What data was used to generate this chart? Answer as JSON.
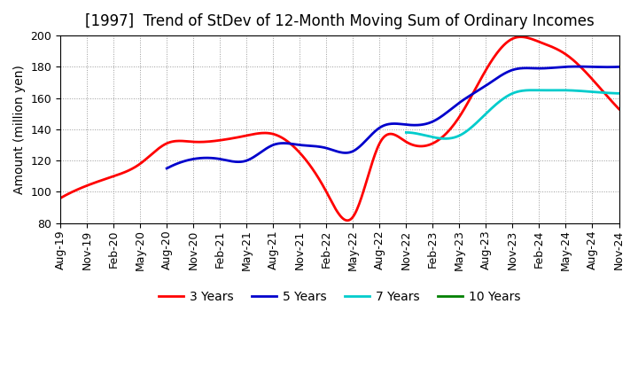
{
  "title": "[1997]  Trend of StDev of 12-Month Moving Sum of Ordinary Incomes",
  "ylabel": "Amount (million yen)",
  "ylim": [
    80,
    200
  ],
  "yticks": [
    80,
    100,
    120,
    140,
    160,
    180,
    200
  ],
  "x_labels": [
    "Aug-19",
    "Nov-19",
    "Feb-20",
    "May-20",
    "Aug-20",
    "Nov-20",
    "Feb-21",
    "May-21",
    "Aug-21",
    "Nov-21",
    "Feb-22",
    "May-22",
    "Aug-22",
    "Nov-22",
    "Feb-23",
    "May-23",
    "Aug-23",
    "Nov-23",
    "Feb-24",
    "May-24",
    "Aug-24",
    "Nov-24"
  ],
  "series": {
    "3 Years": {
      "color": "#ff0000",
      "data": [
        96,
        104,
        110,
        118,
        131,
        132,
        133,
        136,
        137,
        125,
        100,
        84,
        131,
        132,
        131,
        148,
        178,
        198,
        196,
        188,
        172,
        153
      ]
    },
    "5 Years": {
      "color": "#0000cc",
      "data": [
        null,
        null,
        null,
        null,
        115,
        121,
        121,
        120,
        130,
        130,
        128,
        126,
        141,
        143,
        145,
        157,
        168,
        178,
        179,
        180,
        180,
        180
      ]
    },
    "7 Years": {
      "color": "#00cccc",
      "data": [
        null,
        null,
        null,
        null,
        null,
        null,
        null,
        null,
        null,
        null,
        null,
        null,
        null,
        138,
        135,
        136,
        150,
        163,
        165,
        165,
        164,
        163
      ]
    },
    "10 Years": {
      "color": "#008000",
      "data": [
        null,
        null,
        null,
        null,
        null,
        null,
        null,
        null,
        null,
        null,
        null,
        null,
        null,
        null,
        null,
        null,
        null,
        null,
        null,
        null,
        null,
        null
      ]
    }
  },
  "background_color": "#ffffff",
  "plot_bg_color": "#ffffff",
  "grid_color": "#999999",
  "title_fontsize": 12,
  "label_fontsize": 10,
  "tick_fontsize": 9,
  "legend_labels": [
    "3 Years",
    "5 Years",
    "7 Years",
    "10 Years"
  ],
  "legend_colors": [
    "#ff0000",
    "#0000cc",
    "#00cccc",
    "#008000"
  ]
}
